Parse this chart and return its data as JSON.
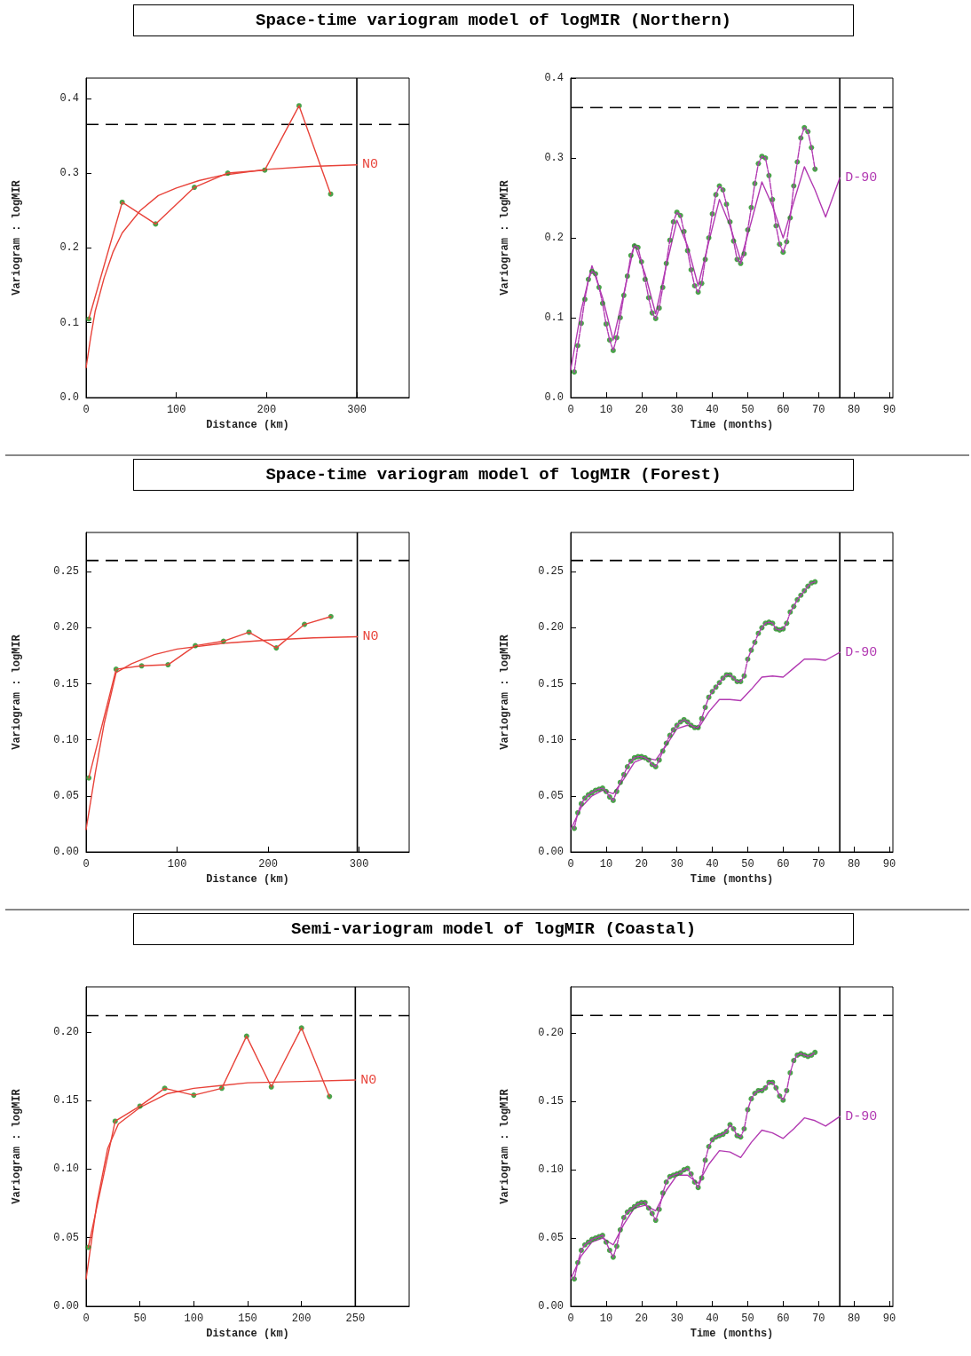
{
  "chart_data": [
    {
      "type": "line",
      "title": "Space-time variogram model of logMIR (Northern)",
      "xlabel": "Distance (km)",
      "ylabel": "Variogram : logMIR",
      "xlim": [
        0,
        358
      ],
      "ylim": [
        0,
        0.427
      ],
      "xticks": [
        0,
        100,
        200,
        300
      ],
      "yticks": [
        {
          "value": 0,
          "label": "0.0"
        },
        {
          "value": 0.1,
          "label": "0.1"
        },
        {
          "value": 0.2,
          "label": "0.2"
        },
        {
          "value": 0.3,
          "label": "0.3"
        },
        {
          "value": 0.4,
          "label": "0.4"
        }
      ],
      "ref_lines": [
        {
          "axis": "y",
          "value": 0.365,
          "color": "#000000",
          "line_style": "dashed"
        },
        {
          "axis": "x",
          "value": 300,
          "color": "#000000",
          "line_style": "solid"
        }
      ],
      "series": [
        {
          "name": "N0",
          "color": "#e8433a",
          "line_style": "solid",
          "marker": "none",
          "x": [
            0,
            5,
            10,
            20,
            30,
            40,
            60,
            80,
            100,
            125,
            150,
            200,
            250,
            300
          ],
          "values": [
            0.04,
            0.08,
            0.115,
            0.16,
            0.195,
            0.22,
            0.25,
            0.27,
            0.28,
            0.29,
            0.297,
            0.305,
            0.309,
            0.311
          ]
        },
        {
          "color": "#e8433a",
          "line_style": "solid",
          "marker": "none",
          "x": [
            3,
            40,
            77,
            120,
            157,
            198,
            236,
            271
          ],
          "values": [
            0.105,
            0.261,
            0.232,
            0.281,
            0.3,
            0.304,
            0.39,
            0.272
          ]
        },
        {
          "type": "scatter",
          "color": "#1e8c1e",
          "marker": "circle",
          "x": [
            3,
            40,
            77,
            120,
            157,
            198,
            236,
            271
          ],
          "values": [
            0.105,
            0.261,
            0.232,
            0.281,
            0.3,
            0.304,
            0.39,
            0.272
          ]
        }
      ]
    },
    {
      "type": "line",
      "xlabel": "Time (months)",
      "ylabel": "Variogram : logMIR",
      "xlim": [
        0,
        91
      ],
      "ylim": [
        0,
        0.4
      ],
      "xticks": [
        0,
        10,
        20,
        30,
        40,
        50,
        60,
        70,
        80,
        90
      ],
      "yticks": [
        {
          "value": 0,
          "label": "0.0"
        },
        {
          "value": 0.1,
          "label": "0.1"
        },
        {
          "value": 0.2,
          "label": "0.2"
        },
        {
          "value": 0.3,
          "label": "0.3"
        },
        {
          "value": 0.4,
          "label": "0.4"
        }
      ],
      "ref_lines": [
        {
          "axis": "y",
          "value": 0.363,
          "color": "#000000",
          "line_style": "dashed"
        },
        {
          "axis": "x",
          "value": 76,
          "color": "#000000",
          "line_style": "solid"
        }
      ],
      "series": [
        {
          "name": "D-90",
          "color": "#b23ab2",
          "line_style": "solid",
          "marker": "none",
          "x": [
            0,
            3,
            6,
            9,
            12,
            15,
            18,
            21,
            24,
            27,
            30,
            33,
            36,
            39,
            42,
            45,
            48,
            51,
            54,
            57,
            60,
            63,
            66,
            69,
            72,
            76
          ],
          "values": [
            0.035,
            0.11,
            0.165,
            0.125,
            0.072,
            0.13,
            0.192,
            0.155,
            0.105,
            0.165,
            0.222,
            0.19,
            0.14,
            0.195,
            0.248,
            0.215,
            0.172,
            0.22,
            0.27,
            0.24,
            0.2,
            0.245,
            0.289,
            0.26,
            0.226,
            0.275
          ]
        },
        {
          "color": "#b23ab2",
          "line_style": "dashed",
          "marker": "none",
          "x": [
            1,
            2,
            3,
            4,
            5,
            6,
            7,
            8,
            9,
            10,
            11,
            12,
            13,
            14,
            15,
            16,
            17,
            18,
            19,
            20,
            21,
            22,
            23,
            24,
            25,
            26,
            27,
            28,
            29,
            30,
            31,
            32,
            33,
            34,
            35,
            36,
            37,
            38,
            39,
            40,
            41,
            42,
            43,
            44,
            45,
            46,
            47,
            48,
            49,
            50,
            51,
            52,
            53,
            54,
            55,
            56,
            57,
            58,
            59,
            60,
            61,
            62,
            63,
            64,
            65,
            66,
            67,
            68,
            69
          ],
          "values": [
            0.032,
            0.065,
            0.093,
            0.123,
            0.148,
            0.158,
            0.155,
            0.138,
            0.118,
            0.092,
            0.072,
            0.059,
            0.075,
            0.1,
            0.128,
            0.152,
            0.178,
            0.19,
            0.188,
            0.17,
            0.148,
            0.125,
            0.106,
            0.099,
            0.112,
            0.138,
            0.168,
            0.197,
            0.22,
            0.232,
            0.228,
            0.208,
            0.184,
            0.16,
            0.14,
            0.132,
            0.143,
            0.173,
            0.2,
            0.23,
            0.254,
            0.265,
            0.26,
            0.242,
            0.22,
            0.196,
            0.173,
            0.168,
            0.18,
            0.21,
            0.238,
            0.268,
            0.293,
            0.302,
            0.3,
            0.278,
            0.248,
            0.215,
            0.192,
            0.182,
            0.195,
            0.225,
            0.265,
            0.295,
            0.325,
            0.338,
            0.333,
            0.313,
            0.286
          ]
        },
        {
          "type": "scatter",
          "color": "#1e8c1e",
          "marker": "circle",
          "x": [
            1,
            2,
            3,
            4,
            5,
            6,
            7,
            8,
            9,
            10,
            11,
            12,
            13,
            14,
            15,
            16,
            17,
            18,
            19,
            20,
            21,
            22,
            23,
            24,
            25,
            26,
            27,
            28,
            29,
            30,
            31,
            32,
            33,
            34,
            35,
            36,
            37,
            38,
            39,
            40,
            41,
            42,
            43,
            44,
            45,
            46,
            47,
            48,
            49,
            50,
            51,
            52,
            53,
            54,
            55,
            56,
            57,
            58,
            59,
            60,
            61,
            62,
            63,
            64,
            65,
            66,
            67,
            68,
            69
          ],
          "values": [
            0.032,
            0.065,
            0.093,
            0.123,
            0.148,
            0.158,
            0.155,
            0.138,
            0.118,
            0.092,
            0.072,
            0.059,
            0.075,
            0.1,
            0.128,
            0.152,
            0.178,
            0.19,
            0.188,
            0.17,
            0.148,
            0.125,
            0.106,
            0.099,
            0.112,
            0.138,
            0.168,
            0.197,
            0.22,
            0.232,
            0.228,
            0.208,
            0.184,
            0.16,
            0.14,
            0.132,
            0.143,
            0.173,
            0.2,
            0.23,
            0.254,
            0.265,
            0.26,
            0.242,
            0.22,
            0.196,
            0.173,
            0.168,
            0.18,
            0.21,
            0.238,
            0.268,
            0.293,
            0.302,
            0.3,
            0.278,
            0.248,
            0.215,
            0.192,
            0.182,
            0.195,
            0.225,
            0.265,
            0.295,
            0.325,
            0.338,
            0.333,
            0.313,
            0.286
          ]
        }
      ]
    },
    {
      "type": "line",
      "title": "Space-time variogram model of logMIR (Forest)",
      "xlabel": "Distance (km)",
      "ylabel": "Variogram : logMIR",
      "xlim": [
        0,
        355
      ],
      "ylim": [
        0,
        0.285
      ],
      "xticks": [
        0,
        100,
        200,
        300
      ],
      "yticks": [
        {
          "value": 0,
          "label": "0.00"
        },
        {
          "value": 0.05,
          "label": "0.05"
        },
        {
          "value": 0.1,
          "label": "0.10"
        },
        {
          "value": 0.15,
          "label": "0.15"
        },
        {
          "value": 0.2,
          "label": "0.20"
        },
        {
          "value": 0.25,
          "label": "0.25"
        }
      ],
      "ref_lines": [
        {
          "axis": "y",
          "value": 0.26,
          "color": "#000000",
          "line_style": "dashed"
        },
        {
          "axis": "x",
          "value": 298,
          "color": "#000000",
          "line_style": "solid"
        }
      ],
      "series": [
        {
          "name": "N0",
          "color": "#e8433a",
          "line_style": "solid",
          "marker": "none",
          "x": [
            0,
            10,
            20,
            33,
            50,
            75,
            100,
            150,
            200,
            250,
            298
          ],
          "values": [
            0.02,
            0.07,
            0.115,
            0.16,
            0.168,
            0.176,
            0.181,
            0.186,
            0.189,
            0.191,
            0.192
          ]
        },
        {
          "color": "#e8433a",
          "line_style": "solid",
          "marker": "none",
          "x": [
            3,
            33,
            61,
            90,
            120,
            151,
            179,
            209,
            240,
            269
          ],
          "values": [
            0.066,
            0.163,
            0.166,
            0.167,
            0.184,
            0.188,
            0.196,
            0.182,
            0.203,
            0.21
          ]
        },
        {
          "type": "scatter",
          "color": "#1e8c1e",
          "marker": "circle",
          "x": [
            3,
            33,
            61,
            90,
            120,
            151,
            179,
            209,
            240,
            269
          ],
          "values": [
            0.066,
            0.163,
            0.166,
            0.167,
            0.184,
            0.188,
            0.196,
            0.182,
            0.203,
            0.21
          ]
        }
      ]
    },
    {
      "type": "line",
      "xlabel": "Time (months)",
      "ylabel": "Variogram : logMIR",
      "xlim": [
        0,
        91
      ],
      "ylim": [
        0,
        0.285
      ],
      "xticks": [
        0,
        10,
        20,
        30,
        40,
        50,
        60,
        70,
        80,
        90
      ],
      "yticks": [
        {
          "value": 0,
          "label": "0.00"
        },
        {
          "value": 0.05,
          "label": "0.05"
        },
        {
          "value": 0.1,
          "label": "0.10"
        },
        {
          "value": 0.15,
          "label": "0.15"
        },
        {
          "value": 0.2,
          "label": "0.20"
        },
        {
          "value": 0.25,
          "label": "0.25"
        }
      ],
      "ref_lines": [
        {
          "axis": "y",
          "value": 0.26,
          "color": "#000000",
          "line_style": "dashed"
        },
        {
          "axis": "x",
          "value": 76,
          "color": "#000000",
          "line_style": "solid"
        }
      ],
      "series": [
        {
          "name": "D-90",
          "color": "#b23ab2",
          "line_style": "solid",
          "marker": "none",
          "x": [
            0,
            3,
            6,
            9,
            12,
            15,
            18,
            21,
            24,
            27,
            30,
            33,
            36,
            39,
            42,
            45,
            48,
            51,
            54,
            57,
            60,
            63,
            66,
            69,
            72,
            76
          ],
          "values": [
            0.02,
            0.04,
            0.05,
            0.055,
            0.052,
            0.065,
            0.08,
            0.084,
            0.082,
            0.095,
            0.11,
            0.113,
            0.11,
            0.125,
            0.136,
            0.136,
            0.135,
            0.145,
            0.156,
            0.157,
            0.156,
            0.164,
            0.172,
            0.172,
            0.171,
            0.178
          ]
        },
        {
          "color": "#b23ab2",
          "line_style": "dashed",
          "marker": "none",
          "x": [
            1,
            2,
            3,
            4,
            5,
            6,
            7,
            8,
            9,
            10,
            11,
            12,
            13,
            14,
            15,
            16,
            17,
            18,
            19,
            20,
            21,
            22,
            23,
            24,
            25,
            26,
            27,
            28,
            29,
            30,
            31,
            32,
            33,
            34,
            35,
            36,
            37,
            38,
            39,
            40,
            41,
            42,
            43,
            44,
            45,
            46,
            47,
            48,
            49,
            50,
            51,
            52,
            53,
            54,
            55,
            56,
            57,
            58,
            59,
            60,
            61,
            62,
            63,
            64,
            65,
            66,
            67,
            68,
            69
          ],
          "values": [
            0.021,
            0.035,
            0.043,
            0.048,
            0.051,
            0.053,
            0.055,
            0.056,
            0.057,
            0.054,
            0.049,
            0.046,
            0.054,
            0.062,
            0.069,
            0.076,
            0.081,
            0.084,
            0.085,
            0.085,
            0.084,
            0.082,
            0.078,
            0.076,
            0.082,
            0.09,
            0.097,
            0.104,
            0.109,
            0.113,
            0.116,
            0.118,
            0.116,
            0.113,
            0.111,
            0.111,
            0.119,
            0.129,
            0.138,
            0.143,
            0.147,
            0.151,
            0.155,
            0.158,
            0.158,
            0.155,
            0.152,
            0.152,
            0.157,
            0.172,
            0.18,
            0.187,
            0.195,
            0.2,
            0.204,
            0.205,
            0.204,
            0.199,
            0.198,
            0.199,
            0.204,
            0.214,
            0.219,
            0.225,
            0.229,
            0.233,
            0.237,
            0.24,
            0.241
          ]
        },
        {
          "type": "scatter",
          "color": "#1e8c1e",
          "marker": "circle",
          "x": [
            1,
            2,
            3,
            4,
            5,
            6,
            7,
            8,
            9,
            10,
            11,
            12,
            13,
            14,
            15,
            16,
            17,
            18,
            19,
            20,
            21,
            22,
            23,
            24,
            25,
            26,
            27,
            28,
            29,
            30,
            31,
            32,
            33,
            34,
            35,
            36,
            37,
            38,
            39,
            40,
            41,
            42,
            43,
            44,
            45,
            46,
            47,
            48,
            49,
            50,
            51,
            52,
            53,
            54,
            55,
            56,
            57,
            58,
            59,
            60,
            61,
            62,
            63,
            64,
            65,
            66,
            67,
            68,
            69
          ],
          "values": [
            0.021,
            0.035,
            0.043,
            0.048,
            0.051,
            0.053,
            0.055,
            0.056,
            0.057,
            0.054,
            0.049,
            0.046,
            0.054,
            0.062,
            0.069,
            0.076,
            0.081,
            0.084,
            0.085,
            0.085,
            0.084,
            0.082,
            0.078,
            0.076,
            0.082,
            0.09,
            0.097,
            0.104,
            0.109,
            0.113,
            0.116,
            0.118,
            0.116,
            0.113,
            0.111,
            0.111,
            0.119,
            0.129,
            0.138,
            0.143,
            0.147,
            0.151,
            0.155,
            0.158,
            0.158,
            0.155,
            0.152,
            0.152,
            0.157,
            0.172,
            0.18,
            0.187,
            0.195,
            0.2,
            0.204,
            0.205,
            0.204,
            0.199,
            0.198,
            0.199,
            0.204,
            0.214,
            0.219,
            0.225,
            0.229,
            0.233,
            0.237,
            0.24,
            0.241
          ]
        }
      ]
    },
    {
      "type": "line",
      "title": "Semi-variogram model of logMIR (Coastal)",
      "xlabel": "Distance (km)",
      "ylabel": "Variogram : logMIR",
      "xlim": [
        0,
        300
      ],
      "ylim": [
        0,
        0.233
      ],
      "xticks": [
        0,
        50,
        100,
        150,
        200,
        250
      ],
      "yticks": [
        {
          "value": 0,
          "label": "0.00"
        },
        {
          "value": 0.05,
          "label": "0.05"
        },
        {
          "value": 0.1,
          "label": "0.10"
        },
        {
          "value": 0.15,
          "label": "0.15"
        },
        {
          "value": 0.2,
          "label": "0.20"
        }
      ],
      "ref_lines": [
        {
          "axis": "y",
          "value": 0.212,
          "color": "#000000",
          "line_style": "dashed"
        },
        {
          "axis": "x",
          "value": 250,
          "color": "#000000",
          "line_style": "solid"
        }
      ],
      "series": [
        {
          "name": "N0",
          "color": "#e8433a",
          "line_style": "solid",
          "marker": "none",
          "x": [
            0,
            10,
            20,
            30,
            50,
            75,
            100,
            125,
            150,
            200,
            250
          ],
          "values": [
            0.02,
            0.075,
            0.115,
            0.133,
            0.145,
            0.155,
            0.159,
            0.161,
            0.163,
            0.164,
            0.165
          ]
        },
        {
          "color": "#e8433a",
          "line_style": "solid",
          "marker": "none",
          "x": [
            2,
            27,
            50,
            73,
            100,
            126,
            149,
            172,
            200,
            226
          ],
          "values": [
            0.043,
            0.135,
            0.146,
            0.159,
            0.154,
            0.159,
            0.197,
            0.16,
            0.203,
            0.153
          ]
        },
        {
          "type": "scatter",
          "color": "#1e8c1e",
          "marker": "circle",
          "x": [
            2,
            27,
            50,
            73,
            100,
            126,
            149,
            172,
            200,
            226
          ],
          "values": [
            0.043,
            0.135,
            0.146,
            0.159,
            0.154,
            0.159,
            0.197,
            0.16,
            0.203,
            0.153
          ]
        }
      ]
    },
    {
      "type": "line",
      "xlabel": "Time (months)",
      "ylabel": "Variogram : logMIR",
      "xlim": [
        0,
        91
      ],
      "ylim": [
        0,
        0.234
      ],
      "xticks": [
        0,
        10,
        20,
        30,
        40,
        50,
        60,
        70,
        80,
        90
      ],
      "yticks": [
        {
          "value": 0,
          "label": "0.00"
        },
        {
          "value": 0.05,
          "label": "0.05"
        },
        {
          "value": 0.1,
          "label": "0.10"
        },
        {
          "value": 0.15,
          "label": "0.15"
        },
        {
          "value": 0.2,
          "label": "0.20"
        }
      ],
      "ref_lines": [
        {
          "axis": "y",
          "value": 0.213,
          "color": "#000000",
          "line_style": "dashed"
        },
        {
          "axis": "x",
          "value": 76,
          "color": "#000000",
          "line_style": "solid"
        }
      ],
      "series": [
        {
          "name": "D-90",
          "color": "#b23ab2",
          "line_style": "solid",
          "marker": "none",
          "x": [
            0,
            3,
            6,
            9,
            12,
            15,
            18,
            21,
            24,
            27,
            30,
            33,
            36,
            39,
            42,
            45,
            48,
            51,
            54,
            57,
            60,
            63,
            66,
            69,
            72,
            76
          ],
          "values": [
            0.02,
            0.037,
            0.047,
            0.05,
            0.045,
            0.06,
            0.072,
            0.074,
            0.07,
            0.085,
            0.096,
            0.096,
            0.09,
            0.104,
            0.114,
            0.113,
            0.109,
            0.12,
            0.129,
            0.127,
            0.123,
            0.13,
            0.138,
            0.136,
            0.132,
            0.139
          ]
        },
        {
          "color": "#b23ab2",
          "line_style": "dashed",
          "marker": "none",
          "x": [
            1,
            2,
            3,
            4,
            5,
            6,
            7,
            8,
            9,
            10,
            11,
            12,
            13,
            14,
            15,
            16,
            17,
            18,
            19,
            20,
            21,
            22,
            23,
            24,
            25,
            26,
            27,
            28,
            29,
            30,
            31,
            32,
            33,
            34,
            35,
            36,
            37,
            38,
            39,
            40,
            41,
            42,
            43,
            44,
            45,
            46,
            47,
            48,
            49,
            50,
            51,
            52,
            53,
            54,
            55,
            56,
            57,
            58,
            59,
            60,
            61,
            62,
            63,
            64,
            65,
            66,
            67,
            68,
            69
          ],
          "values": [
            0.02,
            0.032,
            0.041,
            0.045,
            0.047,
            0.049,
            0.05,
            0.051,
            0.052,
            0.047,
            0.041,
            0.036,
            0.044,
            0.056,
            0.065,
            0.069,
            0.071,
            0.073,
            0.075,
            0.076,
            0.076,
            0.072,
            0.068,
            0.063,
            0.071,
            0.083,
            0.091,
            0.095,
            0.096,
            0.097,
            0.098,
            0.1,
            0.101,
            0.097,
            0.091,
            0.087,
            0.094,
            0.107,
            0.117,
            0.122,
            0.124,
            0.125,
            0.126,
            0.128,
            0.133,
            0.13,
            0.125,
            0.124,
            0.13,
            0.144,
            0.152,
            0.156,
            0.158,
            0.158,
            0.16,
            0.164,
            0.164,
            0.16,
            0.154,
            0.151,
            0.158,
            0.171,
            0.18,
            0.184,
            0.185,
            0.184,
            0.183,
            0.184,
            0.186
          ]
        },
        {
          "type": "scatter",
          "color": "#1e8c1e",
          "marker": "circle",
          "x": [
            1,
            2,
            3,
            4,
            5,
            6,
            7,
            8,
            9,
            10,
            11,
            12,
            13,
            14,
            15,
            16,
            17,
            18,
            19,
            20,
            21,
            22,
            23,
            24,
            25,
            26,
            27,
            28,
            29,
            30,
            31,
            32,
            33,
            34,
            35,
            36,
            37,
            38,
            39,
            40,
            41,
            42,
            43,
            44,
            45,
            46,
            47,
            48,
            49,
            50,
            51,
            52,
            53,
            54,
            55,
            56,
            57,
            58,
            59,
            60,
            61,
            62,
            63,
            64,
            65,
            66,
            67,
            68,
            69
          ],
          "values": [
            0.02,
            0.032,
            0.041,
            0.045,
            0.047,
            0.049,
            0.05,
            0.051,
            0.052,
            0.047,
            0.041,
            0.036,
            0.044,
            0.056,
            0.065,
            0.069,
            0.071,
            0.073,
            0.075,
            0.076,
            0.076,
            0.072,
            0.068,
            0.063,
            0.071,
            0.083,
            0.091,
            0.095,
            0.096,
            0.097,
            0.098,
            0.1,
            0.101,
            0.097,
            0.091,
            0.087,
            0.094,
            0.107,
            0.117,
            0.122,
            0.124,
            0.125,
            0.126,
            0.128,
            0.133,
            0.13,
            0.125,
            0.124,
            0.13,
            0.144,
            0.152,
            0.156,
            0.158,
            0.158,
            0.16,
            0.164,
            0.164,
            0.16,
            0.154,
            0.151,
            0.158,
            0.171,
            0.18,
            0.184,
            0.185,
            0.184,
            0.183,
            0.184,
            0.186
          ]
        }
      ]
    }
  ]
}
